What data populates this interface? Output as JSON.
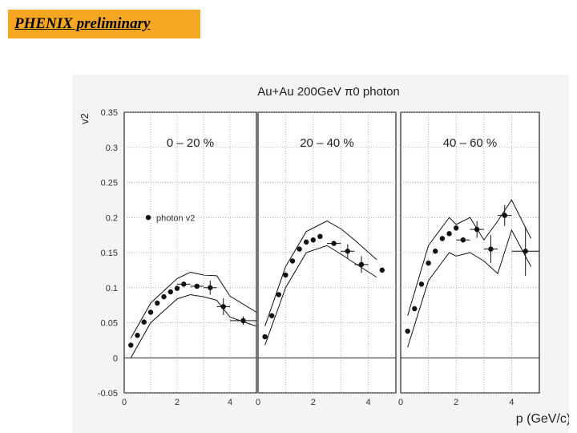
{
  "badge": {
    "label": "PHENIX preliminary"
  },
  "figure": {
    "title": "Au+Au 200GeV π0 photon",
    "ylabel": "v2",
    "xlabel": "p (GeV/c)",
    "legend_label": "photon v2"
  },
  "chart_data": [
    {
      "type": "scatter",
      "panel_label": "0 – 20 %",
      "xlim": [
        0,
        5
      ],
      "ylim": [
        -0.05,
        0.35
      ],
      "grid": true,
      "legend": "top-left",
      "y_ticks": [
        "-0.05",
        "0",
        "0.05",
        "0.1",
        "0.15",
        "0.2",
        "0.25",
        "0.3",
        "0.35"
      ],
      "x_ticks": [
        "0",
        "2",
        "4"
      ],
      "series": [
        {
          "name": "photon v2",
          "x": [
            0.25,
            0.5,
            0.75,
            1.0,
            1.25,
            1.5,
            1.75,
            2.0,
            2.25,
            2.75,
            3.25,
            3.75,
            4.5
          ],
          "y": [
            0.018,
            0.032,
            0.051,
            0.065,
            0.078,
            0.087,
            0.094,
            0.099,
            0.105,
            0.102,
            0.1,
            0.073,
            0.053
          ],
          "x_err": [
            0,
            0,
            0,
            0,
            0,
            0,
            0,
            0,
            0.25,
            0.25,
            0.25,
            0.25,
            0.5
          ],
          "y_err": [
            0,
            0,
            0,
            0,
            0,
            0,
            0,
            0,
            0,
            0,
            0.01,
            0.012,
            0.006
          ]
        }
      ],
      "band_upper": {
        "x": [
          0.25,
          1,
          2,
          2.5,
          3,
          3.5,
          4,
          5
        ],
        "y": [
          0.028,
          0.078,
          0.113,
          0.122,
          0.118,
          0.117,
          0.088,
          0.065
        ]
      },
      "band_lower": {
        "x": [
          0.25,
          1,
          2,
          2.5,
          3,
          3.5,
          4,
          5
        ],
        "y": [
          0.0,
          0.05,
          0.084,
          0.09,
          0.087,
          0.082,
          0.058,
          0.045
        ]
      }
    },
    {
      "type": "scatter",
      "panel_label": "20 – 40 %",
      "xlim": [
        0,
        5
      ],
      "ylim": [
        -0.05,
        0.35
      ],
      "grid": true,
      "x_ticks": [
        "0",
        "2",
        "4"
      ],
      "series": [
        {
          "name": "photon v2",
          "x": [
            0.25,
            0.5,
            0.75,
            1.0,
            1.25,
            1.5,
            1.75,
            2.0,
            2.25,
            2.75,
            3.25,
            3.75,
            4.5
          ],
          "y": [
            0.03,
            0.06,
            0.09,
            0.118,
            0.138,
            0.155,
            0.165,
            0.168,
            0.173,
            0.163,
            0.152,
            0.133,
            0.125
          ],
          "x_err": [
            0,
            0,
            0,
            0,
            0,
            0,
            0,
            0,
            0,
            0.25,
            0.25,
            0.25,
            0
          ],
          "y_err": [
            0,
            0,
            0,
            0,
            0,
            0,
            0,
            0,
            0,
            0,
            0.01,
            0.012,
            0
          ]
        }
      ],
      "band_upper": {
        "x": [
          0.25,
          1,
          1.75,
          2.5,
          3,
          3.5,
          4.3
        ],
        "y": [
          0.045,
          0.13,
          0.18,
          0.195,
          0.184,
          0.168,
          0.14
        ]
      },
      "band_lower": {
        "x": [
          0.25,
          1,
          1.75,
          2.5,
          3,
          3.5,
          4.3
        ],
        "y": [
          0.018,
          0.1,
          0.15,
          0.16,
          0.148,
          0.135,
          0.115
        ]
      }
    },
    {
      "type": "scatter",
      "panel_label": "40 – 60 %",
      "xlim": [
        0,
        5
      ],
      "ylim": [
        -0.05,
        0.35
      ],
      "grid": true,
      "x_ticks": [
        "0",
        "2",
        "4"
      ],
      "series": [
        {
          "name": "photon v2",
          "x": [
            0.25,
            0.5,
            0.75,
            1.0,
            1.25,
            1.5,
            1.75,
            2.0,
            2.25,
            2.75,
            3.25,
            3.75,
            4.5
          ],
          "y": [
            0.038,
            0.07,
            0.105,
            0.135,
            0.152,
            0.17,
            0.177,
            0.185,
            0.168,
            0.183,
            0.155,
            0.203,
            0.152
          ],
          "x_err": [
            0,
            0,
            0,
            0,
            0,
            0,
            0,
            0,
            0.25,
            0.25,
            0.25,
            0.25,
            0.5
          ],
          "y_err": [
            0,
            0,
            0,
            0,
            0,
            0,
            0,
            0,
            0,
            0.012,
            0.02,
            0.015,
            0.035
          ]
        }
      ],
      "band_upper": {
        "x": [
          0.25,
          1,
          1.75,
          2.0,
          2.5,
          3,
          3.5,
          4,
          4.7
        ],
        "y": [
          0.06,
          0.16,
          0.2,
          0.19,
          0.2,
          0.168,
          0.195,
          0.225,
          0.17
        ]
      },
      "band_lower": {
        "x": [
          0.25,
          1,
          1.75,
          2.0,
          2.5,
          3,
          3.5,
          4,
          4.7
        ],
        "y": [
          0.015,
          0.11,
          0.15,
          0.145,
          0.15,
          0.138,
          0.12,
          0.182,
          0.13
        ]
      }
    }
  ]
}
